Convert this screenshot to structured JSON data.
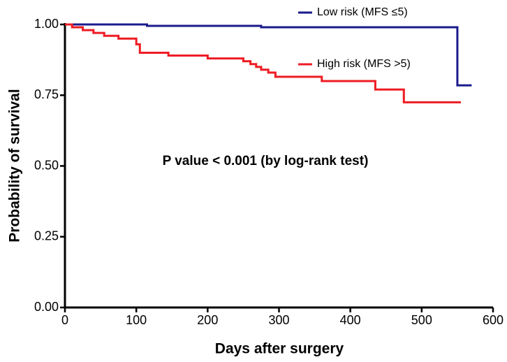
{
  "chart_data": {
    "type": "step",
    "xlabel": "Days after surgery",
    "ylabel": "Probability of survival",
    "annotation": "P value < 0.001 (by log-rank test)",
    "xlim": [
      0,
      600
    ],
    "ylim": [
      0,
      1
    ],
    "xticks": [
      0,
      100,
      200,
      300,
      400,
      500,
      600
    ],
    "yticks": [
      {
        "value": 0,
        "label": "0.00"
      },
      {
        "value": 0.25,
        "label": "0.25"
      },
      {
        "value": 0.5,
        "label": "0.50"
      },
      {
        "value": 0.75,
        "label": "0.75"
      },
      {
        "value": 1,
        "label": "1.00"
      }
    ],
    "series": [
      {
        "name": "Low risk (MFS ≤5)",
        "color": "#1a1a8c",
        "x": [
          0,
          115,
          275,
          550,
          570
        ],
        "values": [
          1.0,
          0.995,
          0.99,
          0.785,
          0.785
        ]
      },
      {
        "name": "High risk (MFS >5)",
        "color": "#ee1c24",
        "x": [
          0,
          10,
          25,
          40,
          55,
          75,
          100,
          105,
          145,
          200,
          250,
          260,
          268,
          275,
          285,
          295,
          360,
          435,
          475,
          555
        ],
        "values": [
          1.0,
          0.99,
          0.98,
          0.97,
          0.96,
          0.95,
          0.93,
          0.9,
          0.89,
          0.88,
          0.87,
          0.86,
          0.85,
          0.84,
          0.83,
          0.815,
          0.8,
          0.77,
          0.725,
          0.725
        ]
      }
    ]
  }
}
